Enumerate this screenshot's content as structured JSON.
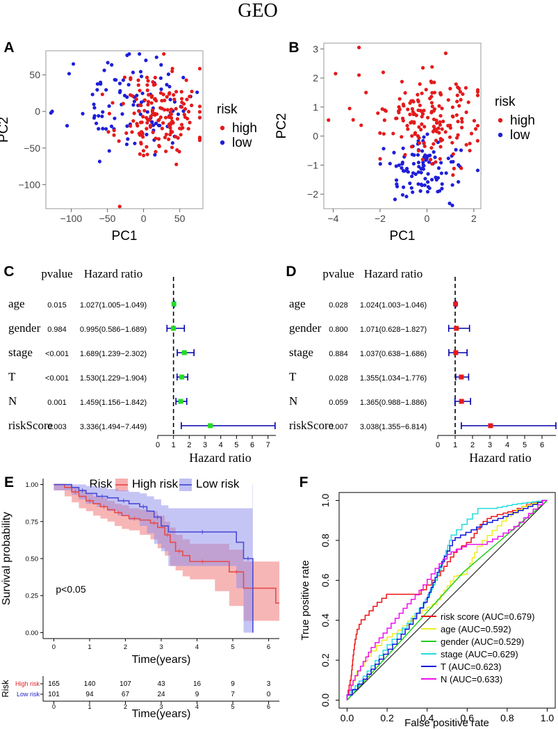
{
  "figure": {
    "title": "GEO"
  },
  "colors": {
    "high": "#e41a1c",
    "low": "#1f1fd8",
    "forestA": "#22dd22",
    "forestD": "#e41a1c",
    "bar": "#0000aa",
    "riskHigh": "#e64b4b",
    "riskLow": "#4b4bd6"
  },
  "chart_data": [
    {
      "panel": "A",
      "type": "scatter",
      "xlabel": "PC1",
      "ylabel": "PC2",
      "xlim": [
        -135,
        82
      ],
      "ylim": [
        -133,
        83
      ],
      "xticks": [
        -100,
        -50,
        0,
        50
      ],
      "yticks": [
        -100,
        -50,
        0,
        50
      ],
      "legend": {
        "title": "risk",
        "items": [
          "high",
          "low"
        ],
        "placement": "right"
      },
      "series": [
        {
          "name": "high",
          "seed": 11,
          "n": 165,
          "cx": 22,
          "cy": -5,
          "sx": 28,
          "sy": 32
        },
        {
          "name": "low",
          "seed": 23,
          "n": 101,
          "cx": -18,
          "cy": 8,
          "sx": 40,
          "sy": 30
        }
      ],
      "extra_points": [
        {
          "group": "high",
          "x": -33,
          "y": -130
        },
        {
          "group": "low",
          "x": -128,
          "y": -2
        },
        {
          "group": "low",
          "x": -97,
          "y": 65
        }
      ]
    },
    {
      "panel": "B",
      "type": "scatter",
      "xlabel": "PC1",
      "ylabel": "PC2",
      "xlim": [
        -4.4,
        2.3
      ],
      "ylim": [
        -2.5,
        3.2
      ],
      "xticks": [
        -4,
        -2,
        0,
        2
      ],
      "yticks": [
        -2,
        -1,
        0,
        1,
        2,
        3
      ],
      "legend": {
        "title": "risk",
        "items": [
          "high",
          "low"
        ],
        "placement": "right"
      },
      "series": [
        {
          "name": "high",
          "seed": 5,
          "n": 165,
          "cx": 0.4,
          "cy": 0.6,
          "sx": 1.1,
          "sy": 0.75
        },
        {
          "name": "low",
          "seed": 41,
          "n": 101,
          "cx": 0.0,
          "cy": -1.15,
          "sx": 0.85,
          "sy": 0.5
        }
      ],
      "extra_points": [
        {
          "group": "high",
          "x": -3.9,
          "y": 2.15
        },
        {
          "group": "high",
          "x": -2.9,
          "y": 3.05
        },
        {
          "group": "high",
          "x": -4.2,
          "y": 0.55
        },
        {
          "group": "high",
          "x": -3.3,
          "y": 0.95
        },
        {
          "group": "high",
          "x": -2.6,
          "y": 1.5
        },
        {
          "group": "high",
          "x": -2.9,
          "y": 2.1
        },
        {
          "group": "high",
          "x": 0.8,
          "y": 2.85
        }
      ]
    },
    {
      "panel": "C",
      "type": "forest",
      "pvalue_header": "pvalue",
      "hr_header": "Hazard ratio",
      "xlabel": "Hazard ratio",
      "xlim": [
        0,
        7.5
      ],
      "xticks": [
        0,
        1,
        2,
        3,
        4,
        5,
        6,
        7
      ],
      "ref": 1,
      "color": "forestA",
      "rows": [
        {
          "name": "age",
          "p": "0.015",
          "hr_text": "1.027(1.005−1.049)",
          "hr": 1.027,
          "lo": 1.005,
          "hi": 1.049
        },
        {
          "name": "gender",
          "p": "0.984",
          "hr_text": "0.995(0.586−1.689)",
          "hr": 0.995,
          "lo": 0.586,
          "hi": 1.689
        },
        {
          "name": "stage",
          "p": "<0.001",
          "hr_text": "1.689(1.239−2.302)",
          "hr": 1.689,
          "lo": 1.239,
          "hi": 2.302
        },
        {
          "name": "T",
          "p": "<0.001",
          "hr_text": "1.530(1.229−1.904)",
          "hr": 1.53,
          "lo": 1.229,
          "hi": 1.904
        },
        {
          "name": "N",
          "p": "0.001",
          "hr_text": "1.459(1.156−1.842)",
          "hr": 1.459,
          "lo": 1.156,
          "hi": 1.842
        },
        {
          "name": "riskScore",
          "p": "0.003",
          "hr_text": "3.336(1.494−7.449)",
          "hr": 3.336,
          "lo": 1.494,
          "hi": 7.449
        }
      ]
    },
    {
      "panel": "D",
      "type": "forest",
      "pvalue_header": "pvalue",
      "hr_header": "Hazard ratio",
      "xlabel": "Hazard ratio",
      "xlim": [
        0,
        6.8
      ],
      "xticks": [
        0,
        1,
        2,
        3,
        4,
        5,
        6
      ],
      "ref": 1,
      "color": "forestD",
      "rows": [
        {
          "name": "age",
          "p": "0.028",
          "hr_text": "1.024(1.003−1.046)",
          "hr": 1.024,
          "lo": 1.003,
          "hi": 1.046
        },
        {
          "name": "gender",
          "p": "0.800",
          "hr_text": "1.071(0.628−1.827)",
          "hr": 1.071,
          "lo": 0.628,
          "hi": 1.827
        },
        {
          "name": "stage",
          "p": "0.884",
          "hr_text": "1.037(0.638−1.686)",
          "hr": 1.037,
          "lo": 0.638,
          "hi": 1.686
        },
        {
          "name": "T",
          "p": "0.028",
          "hr_text": "1.355(1.034−1.776)",
          "hr": 1.355,
          "lo": 1.034,
          "hi": 1.776
        },
        {
          "name": "N",
          "p": "0.059",
          "hr_text": "1.365(0.988−1.886)",
          "hr": 1.365,
          "lo": 0.988,
          "hi": 1.886
        },
        {
          "name": "riskScore",
          "p": "0.007",
          "hr_text": "3.038(1.355−6.814)",
          "hr": 3.038,
          "lo": 1.355,
          "hi": 6.814
        }
      ]
    },
    {
      "panel": "E",
      "type": "line",
      "subtype": "kaplan-meier",
      "xlabel": "Time(years)",
      "ylabel": "Survival probability",
      "xlim": [
        -0.3,
        6.3
      ],
      "ylim": [
        -0.04,
        1.04
      ],
      "xticks": [
        0,
        1,
        2,
        3,
        4,
        5,
        6
      ],
      "yticks": [
        0.0,
        0.25,
        0.5,
        0.75,
        1.0
      ],
      "yticklabels": [
        "0.00",
        "0.25",
        "0.50",
        "0.75",
        "1.00"
      ],
      "legend": {
        "title": "Risk",
        "items": [
          "High risk",
          "Low risk"
        ],
        "placement": "top"
      },
      "annotation": "p<0.05",
      "series": [
        {
          "name": "High risk",
          "x": [
            0,
            0.3,
            0.5,
            0.7,
            0.9,
            1.1,
            1.3,
            1.5,
            1.7,
            1.9,
            2.1,
            2.4,
            2.7,
            2.9,
            3.1,
            3.25,
            3.4,
            3.6,
            3.8,
            4.5,
            4.9,
            5.3,
            6.2,
            6.3
          ],
          "y": [
            1.0,
            0.98,
            0.95,
            0.92,
            0.89,
            0.87,
            0.85,
            0.83,
            0.81,
            0.79,
            0.77,
            0.76,
            0.74,
            0.71,
            0.66,
            0.61,
            0.55,
            0.52,
            0.48,
            0.48,
            0.41,
            0.3,
            0.2,
            0.2
          ],
          "lower": [
            1.0,
            0.96,
            0.92,
            0.88,
            0.84,
            0.82,
            0.79,
            0.77,
            0.75,
            0.72,
            0.7,
            0.69,
            0.66,
            0.63,
            0.57,
            0.52,
            0.45,
            0.42,
            0.38,
            0.36,
            0.28,
            0.18,
            0.08,
            0.08
          ],
          "upper": [
            1.0,
            1.0,
            0.98,
            0.96,
            0.94,
            0.92,
            0.91,
            0.89,
            0.87,
            0.86,
            0.84,
            0.83,
            0.82,
            0.79,
            0.75,
            0.71,
            0.66,
            0.63,
            0.6,
            0.6,
            0.56,
            0.48,
            0.48,
            0.48
          ]
        },
        {
          "name": "Low risk",
          "x": [
            0,
            0.5,
            0.7,
            0.9,
            1.2,
            1.5,
            1.8,
            2.1,
            2.4,
            2.6,
            2.8,
            3.0,
            3.2,
            5.1,
            5.3,
            5.55,
            5.56
          ],
          "y": [
            1.0,
            0.98,
            0.96,
            0.94,
            0.92,
            0.91,
            0.89,
            0.87,
            0.85,
            0.82,
            0.78,
            0.72,
            0.68,
            0.61,
            0.5,
            0.5,
            0.0
          ],
          "lower": [
            1.0,
            0.96,
            0.93,
            0.9,
            0.87,
            0.85,
            0.82,
            0.79,
            0.76,
            0.72,
            0.67,
            0.6,
            0.55,
            0.45,
            0.3,
            0.0,
            0.0
          ],
          "upper": [
            1.0,
            1.0,
            1.0,
            0.99,
            0.98,
            0.97,
            0.96,
            0.95,
            0.94,
            0.92,
            0.9,
            0.86,
            0.84,
            0.84,
            0.84,
            1.0,
            1.0
          ]
        }
      ],
      "risk_table": {
        "title": "Risk",
        "rows": [
          {
            "name": "High risk",
            "values": [
              165,
              140,
              107,
              43,
              16,
              9,
              3
            ]
          },
          {
            "name": "Low risk",
            "values": [
              101,
              94,
              67,
              24,
              9,
              7,
              0
            ]
          }
        ],
        "xticks": [
          0,
          1,
          2,
          3,
          4,
          5,
          6
        ],
        "xlabel": "Time(years)"
      }
    },
    {
      "panel": "F",
      "type": "line",
      "subtype": "roc",
      "xlabel": "False positive rate",
      "ylabel": "True positive rate",
      "xlim": [
        -0.04,
        1.04
      ],
      "ylim": [
        -0.04,
        1.04
      ],
      "xticks": [
        0.0,
        0.2,
        0.4,
        0.6,
        0.8,
        1.0
      ],
      "yticks": [
        0.0,
        0.2,
        0.4,
        0.6,
        0.8,
        1.0
      ],
      "xticklabels": [
        "0.0",
        "0.2",
        "0.4",
        "0.6",
        "0.8",
        "1.0"
      ],
      "legend": {
        "placement": "bottom-right"
      },
      "series": [
        {
          "name": "risk score (AUC=0.679)",
          "color": "#ee1111",
          "x": [
            0.0,
            0.02,
            0.03,
            0.04,
            0.05,
            0.07,
            0.15,
            0.22,
            0.3,
            0.37,
            0.45,
            0.5,
            0.55,
            0.62,
            0.68,
            0.72,
            0.78,
            0.85,
            0.92,
            1.0
          ],
          "y": [
            0.0,
            0.1,
            0.2,
            0.28,
            0.33,
            0.38,
            0.47,
            0.53,
            0.53,
            0.53,
            0.6,
            0.67,
            0.74,
            0.79,
            0.88,
            0.91,
            0.93,
            0.95,
            0.98,
            1.0
          ]
        },
        {
          "name": "age (AUC=0.592)",
          "color": "#eeee22",
          "x": [
            0.0,
            0.05,
            0.12,
            0.2,
            0.28,
            0.35,
            0.45,
            0.5,
            0.55,
            0.6,
            0.65,
            0.7,
            0.75,
            0.82,
            0.9,
            1.0
          ],
          "y": [
            0.0,
            0.12,
            0.22,
            0.3,
            0.35,
            0.42,
            0.48,
            0.55,
            0.62,
            0.63,
            0.74,
            0.8,
            0.85,
            0.92,
            0.97,
            1.0
          ]
        },
        {
          "name": "gender (AUC=0.529)",
          "color": "#22cc22",
          "x": [
            0.0,
            0.58,
            1.0
          ],
          "y": [
            0.0,
            0.64,
            1.0
          ]
        },
        {
          "name": "stage (AUC=0.629)",
          "color": "#22dddd",
          "x": [
            0.0,
            0.1,
            0.2,
            0.3,
            0.38,
            0.45,
            0.52,
            0.6,
            0.68,
            0.75,
            0.85,
            1.0
          ],
          "y": [
            0.0,
            0.12,
            0.25,
            0.36,
            0.46,
            0.6,
            0.8,
            0.88,
            0.96,
            0.96,
            0.98,
            1.0
          ]
        },
        {
          "name": "T (AUC=0.623)",
          "color": "#1111dd",
          "x": [
            0.0,
            0.08,
            0.16,
            0.25,
            0.33,
            0.4,
            0.46,
            0.54,
            0.62,
            0.7,
            0.78,
            0.88,
            1.0
          ],
          "y": [
            0.0,
            0.08,
            0.18,
            0.28,
            0.38,
            0.49,
            0.64,
            0.8,
            0.84,
            0.88,
            0.91,
            0.95,
            1.0
          ]
        },
        {
          "name": "N (AUC=0.633)",
          "color": "#ee11ee",
          "x": [
            0.0,
            0.04,
            0.12,
            0.22,
            0.3,
            0.38,
            0.46,
            0.52,
            0.62,
            0.7,
            0.78,
            0.86,
            1.0
          ],
          "y": [
            0.0,
            0.1,
            0.24,
            0.36,
            0.46,
            0.55,
            0.66,
            0.73,
            0.78,
            0.78,
            0.82,
            0.87,
            1.0
          ]
        }
      ]
    }
  ]
}
